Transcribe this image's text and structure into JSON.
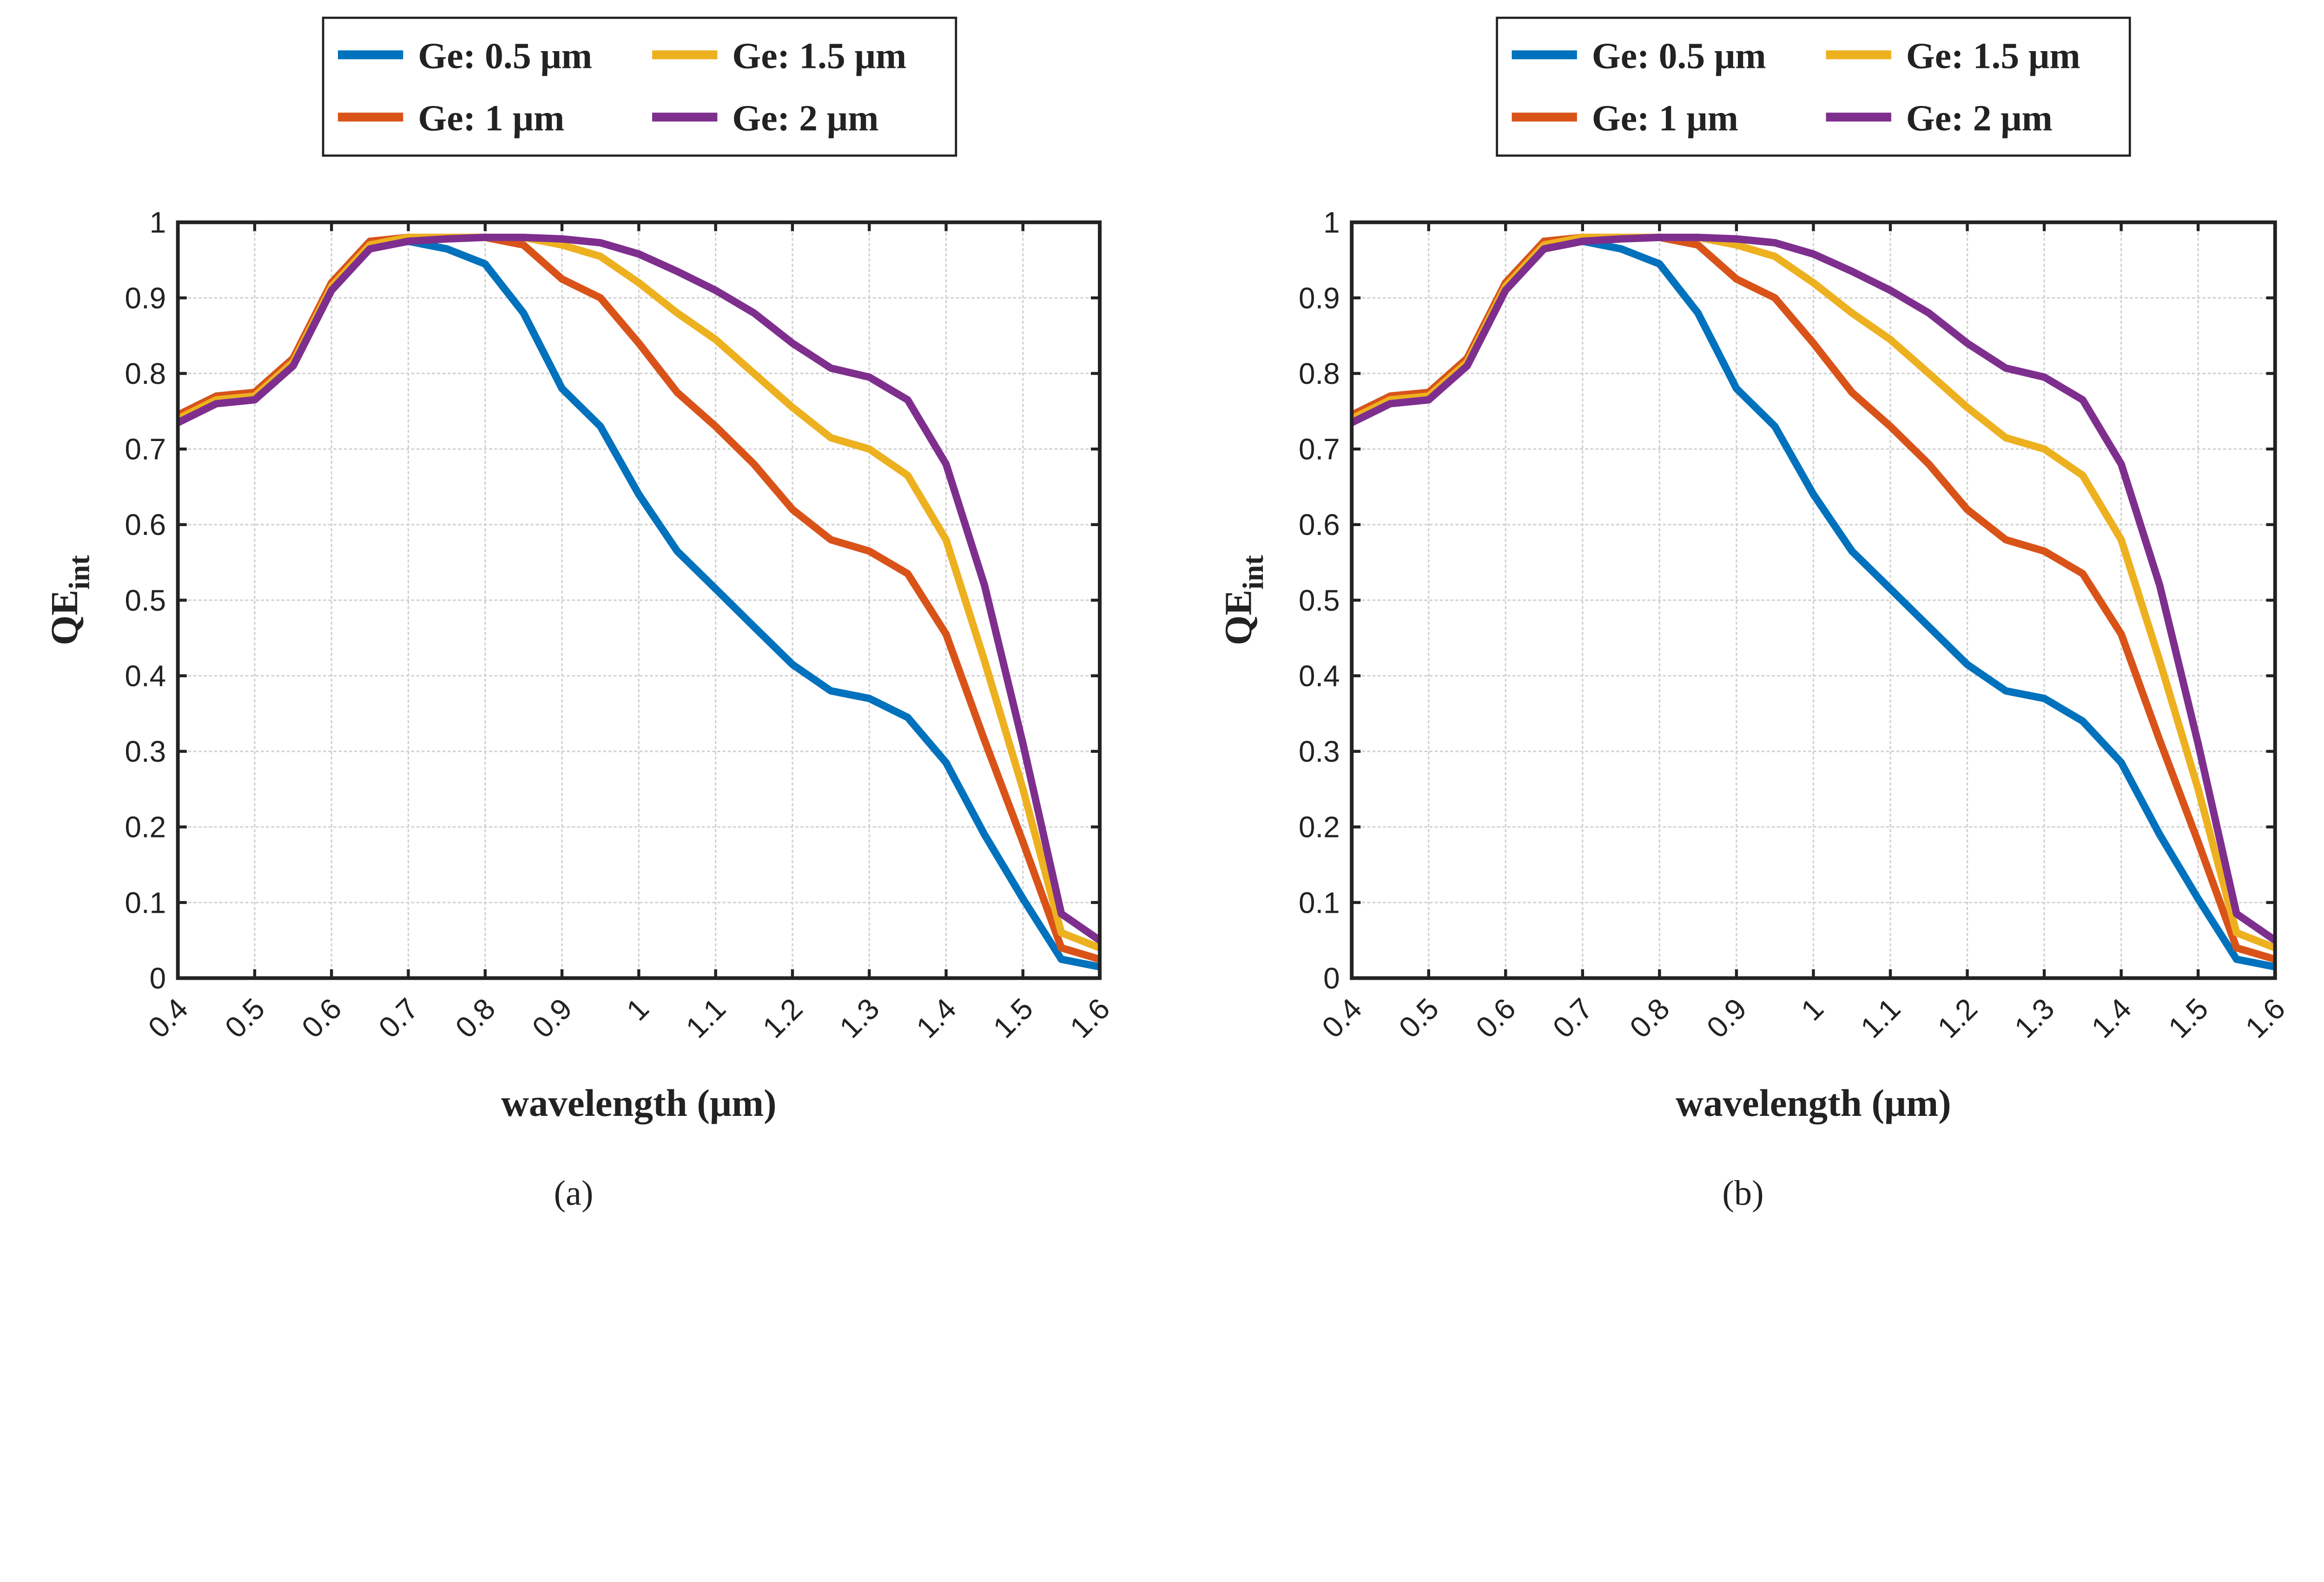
{
  "chart_data": [
    {
      "type": "line",
      "panel_label": "(a)",
      "xlabel": "wavelength (μm)",
      "ylabel": "QE",
      "ylabel_sub": "int",
      "xlim": [
        0.4,
        1.6
      ],
      "ylim": [
        0,
        1
      ],
      "xticks": [
        "0.4",
        "0.5",
        "0.6",
        "0.7",
        "0.8",
        "0.9",
        "1",
        "1.1",
        "1.2",
        "1.3",
        "1.4",
        "1.5",
        "1.6"
      ],
      "yticks": [
        "0",
        "0.1",
        "0.2",
        "0.3",
        "0.4",
        "0.5",
        "0.6",
        "0.7",
        "0.8",
        "0.9",
        "1"
      ],
      "grid": true,
      "legend_position": "top-outside",
      "x": [
        0.4,
        0.45,
        0.5,
        0.55,
        0.6,
        0.65,
        0.7,
        0.75,
        0.8,
        0.85,
        0.9,
        0.95,
        1.0,
        1.05,
        1.1,
        1.15,
        1.2,
        1.25,
        1.3,
        1.35,
        1.4,
        1.45,
        1.5,
        1.55,
        1.6
      ],
      "series": [
        {
          "name": "Ge: 0.5 μm",
          "color": "#0072BD",
          "values": [
            0.745,
            0.77,
            0.775,
            0.82,
            0.92,
            0.975,
            0.975,
            0.965,
            0.945,
            0.88,
            0.78,
            0.73,
            0.64,
            0.565,
            0.515,
            0.465,
            0.415,
            0.38,
            0.37,
            0.345,
            0.285,
            0.19,
            0.105,
            0.025,
            0.015
          ]
        },
        {
          "name": "Ge: 1 μm",
          "color": "#D95319",
          "values": [
            0.745,
            0.77,
            0.775,
            0.82,
            0.92,
            0.975,
            0.98,
            0.98,
            0.98,
            0.97,
            0.925,
            0.9,
            0.84,
            0.775,
            0.73,
            0.68,
            0.62,
            0.58,
            0.565,
            0.535,
            0.455,
            0.315,
            0.18,
            0.04,
            0.025
          ]
        },
        {
          "name": "Ge: 1.5 μm",
          "color": "#EDB120",
          "values": [
            0.74,
            0.765,
            0.77,
            0.815,
            0.915,
            0.97,
            0.98,
            0.98,
            0.98,
            0.98,
            0.97,
            0.955,
            0.92,
            0.88,
            0.845,
            0.8,
            0.755,
            0.715,
            0.7,
            0.665,
            0.58,
            0.42,
            0.25,
            0.06,
            0.04
          ]
        },
        {
          "name": "Ge: 2 μm",
          "color": "#7E2F8E",
          "values": [
            0.735,
            0.76,
            0.765,
            0.81,
            0.91,
            0.965,
            0.975,
            0.978,
            0.98,
            0.98,
            0.978,
            0.973,
            0.958,
            0.935,
            0.91,
            0.88,
            0.84,
            0.807,
            0.795,
            0.765,
            0.68,
            0.52,
            0.31,
            0.085,
            0.05
          ]
        }
      ]
    },
    {
      "type": "line",
      "panel_label": "(b)",
      "xlabel": "wavelength (μm)",
      "ylabel": "QE",
      "ylabel_sub": "int",
      "xlim": [
        0.4,
        1.6
      ],
      "ylim": [
        0,
        1
      ],
      "xticks": [
        "0.4",
        "0.5",
        "0.6",
        "0.7",
        "0.8",
        "0.9",
        "1",
        "1.1",
        "1.2",
        "1.3",
        "1.4",
        "1.5",
        "1.6"
      ],
      "yticks": [
        "0",
        "0.1",
        "0.2",
        "0.3",
        "0.4",
        "0.5",
        "0.6",
        "0.7",
        "0.8",
        "0.9",
        "1"
      ],
      "grid": true,
      "legend_position": "top-outside",
      "x": [
        0.4,
        0.45,
        0.5,
        0.55,
        0.6,
        0.65,
        0.7,
        0.75,
        0.8,
        0.85,
        0.9,
        0.95,
        1.0,
        1.05,
        1.1,
        1.15,
        1.2,
        1.25,
        1.3,
        1.35,
        1.4,
        1.45,
        1.5,
        1.55,
        1.6
      ],
      "series": [
        {
          "name": "Ge: 0.5 μm",
          "color": "#0072BD",
          "values": [
            0.745,
            0.77,
            0.775,
            0.82,
            0.92,
            0.975,
            0.975,
            0.965,
            0.945,
            0.88,
            0.78,
            0.73,
            0.64,
            0.565,
            0.515,
            0.465,
            0.415,
            0.38,
            0.37,
            0.34,
            0.285,
            0.19,
            0.105,
            0.025,
            0.015
          ]
        },
        {
          "name": "Ge: 1 μm",
          "color": "#D95319",
          "values": [
            0.745,
            0.77,
            0.775,
            0.82,
            0.92,
            0.975,
            0.98,
            0.98,
            0.98,
            0.97,
            0.925,
            0.9,
            0.84,
            0.775,
            0.73,
            0.68,
            0.62,
            0.58,
            0.565,
            0.535,
            0.455,
            0.315,
            0.18,
            0.04,
            0.025
          ]
        },
        {
          "name": "Ge: 1.5 μm",
          "color": "#EDB120",
          "values": [
            0.74,
            0.765,
            0.77,
            0.815,
            0.915,
            0.97,
            0.98,
            0.98,
            0.98,
            0.98,
            0.97,
            0.955,
            0.92,
            0.88,
            0.845,
            0.8,
            0.755,
            0.715,
            0.7,
            0.665,
            0.58,
            0.42,
            0.25,
            0.06,
            0.04
          ]
        },
        {
          "name": "Ge: 2 μm",
          "color": "#7E2F8E",
          "values": [
            0.735,
            0.76,
            0.765,
            0.81,
            0.91,
            0.965,
            0.975,
            0.978,
            0.98,
            0.98,
            0.978,
            0.973,
            0.958,
            0.935,
            0.91,
            0.88,
            0.84,
            0.807,
            0.795,
            0.765,
            0.68,
            0.52,
            0.31,
            0.085,
            0.05
          ]
        }
      ]
    }
  ]
}
